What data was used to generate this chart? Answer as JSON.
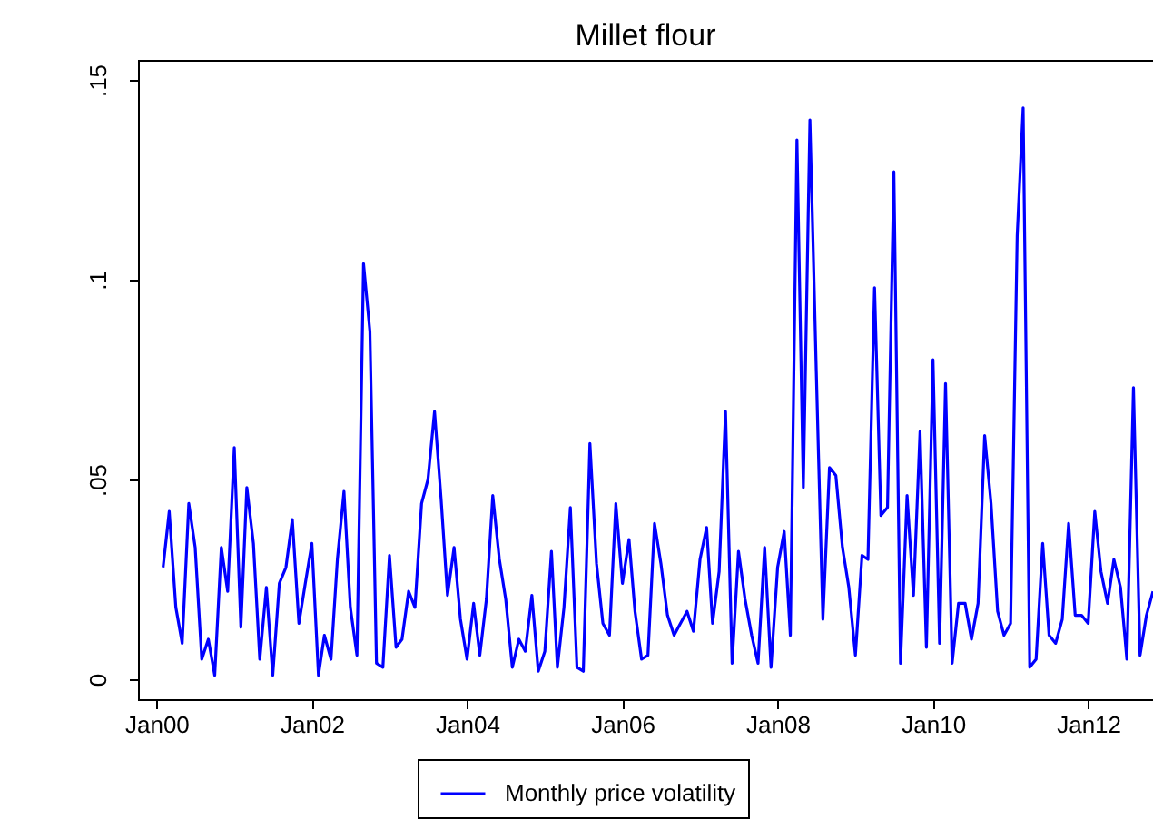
{
  "chart_data": {
    "type": "line",
    "title": "Millet flour",
    "x": [
      "2000-02",
      "2000-03",
      "2000-04",
      "2000-05",
      "2000-06",
      "2000-07",
      "2000-08",
      "2000-09",
      "2000-10",
      "2000-11",
      "2000-12",
      "2001-01",
      "2001-02",
      "2001-03",
      "2001-04",
      "2001-05",
      "2001-06",
      "2001-07",
      "2001-08",
      "2001-09",
      "2001-10",
      "2001-11",
      "2001-12",
      "2002-01",
      "2002-02",
      "2002-03",
      "2002-04",
      "2002-05",
      "2002-06",
      "2002-07",
      "2002-08",
      "2002-09",
      "2002-10",
      "2002-11",
      "2002-12",
      "2003-01",
      "2003-02",
      "2003-03",
      "2003-04",
      "2003-05",
      "2003-06",
      "2003-07",
      "2003-08",
      "2003-09",
      "2003-10",
      "2003-11",
      "2003-12",
      "2004-01",
      "2004-02",
      "2004-03",
      "2004-04",
      "2004-05",
      "2004-06",
      "2004-07",
      "2004-08",
      "2004-09",
      "2004-10",
      "2004-11",
      "2004-12",
      "2005-01",
      "2005-02",
      "2005-03",
      "2005-04",
      "2005-05",
      "2005-06",
      "2005-07",
      "2005-08",
      "2005-09",
      "2005-10",
      "2005-11",
      "2005-12",
      "2006-01",
      "2006-02",
      "2006-03",
      "2006-04",
      "2006-05",
      "2006-06",
      "2006-07",
      "2006-08",
      "2006-09",
      "2006-10",
      "2006-11",
      "2006-12",
      "2007-01",
      "2007-02",
      "2007-03",
      "2007-04",
      "2007-05",
      "2007-06",
      "2007-07",
      "2007-08",
      "2007-09",
      "2007-10",
      "2007-11",
      "2007-12",
      "2008-01",
      "2008-02",
      "2008-03",
      "2008-04",
      "2008-05",
      "2008-06",
      "2008-07",
      "2008-08",
      "2008-09",
      "2008-10",
      "2008-11",
      "2008-12",
      "2009-01",
      "2009-02",
      "2009-03",
      "2009-04",
      "2009-05",
      "2009-06",
      "2009-07",
      "2009-08",
      "2009-09",
      "2009-10",
      "2009-11",
      "2009-12",
      "2010-01",
      "2010-02",
      "2010-03",
      "2010-04",
      "2010-05",
      "2010-06",
      "2010-07",
      "2010-08",
      "2010-09",
      "2010-10",
      "2010-11",
      "2010-12",
      "2011-01",
      "2011-02",
      "2011-03",
      "2011-04",
      "2011-05",
      "2011-06",
      "2011-07",
      "2011-08",
      "2011-09",
      "2011-10",
      "2011-11",
      "2011-12",
      "2012-01",
      "2012-02",
      "2012-03",
      "2012-04",
      "2012-05",
      "2012-06",
      "2012-07",
      "2012-08",
      "2012-09",
      "2012-10",
      "2012-11"
    ],
    "series": [
      {
        "name": "Monthly price volatility",
        "color": "#0000ff",
        "values": [
          0.028,
          0.042,
          0.018,
          0.009,
          0.044,
          0.033,
          0.005,
          0.01,
          0.001,
          0.033,
          0.022,
          0.058,
          0.013,
          0.048,
          0.034,
          0.005,
          0.023,
          0.001,
          0.024,
          0.028,
          0.04,
          0.014,
          0.024,
          0.034,
          0.001,
          0.011,
          0.005,
          0.03,
          0.047,
          0.018,
          0.006,
          0.104,
          0.087,
          0.004,
          0.003,
          0.031,
          0.008,
          0.01,
          0.022,
          0.018,
          0.044,
          0.05,
          0.067,
          0.045,
          0.021,
          0.033,
          0.015,
          0.005,
          0.019,
          0.006,
          0.02,
          0.046,
          0.03,
          0.02,
          0.003,
          0.01,
          0.007,
          0.021,
          0.002,
          0.007,
          0.032,
          0.003,
          0.018,
          0.043,
          0.003,
          0.002,
          0.059,
          0.029,
          0.014,
          0.011,
          0.044,
          0.024,
          0.035,
          0.017,
          0.005,
          0.006,
          0.039,
          0.029,
          0.016,
          0.011,
          0.014,
          0.017,
          0.012,
          0.03,
          0.038,
          0.014,
          0.027,
          0.067,
          0.004,
          0.032,
          0.02,
          0.011,
          0.004,
          0.033,
          0.003,
          0.028,
          0.037,
          0.011,
          0.135,
          0.048,
          0.14,
          0.077,
          0.015,
          0.053,
          0.051,
          0.033,
          0.023,
          0.006,
          0.031,
          0.03,
          0.098,
          0.041,
          0.043,
          0.127,
          0.004,
          0.046,
          0.021,
          0.062,
          0.008,
          0.08,
          0.009,
          0.074,
          0.004,
          0.019,
          0.019,
          0.01,
          0.019,
          0.061,
          0.044,
          0.017,
          0.011,
          0.014,
          0.111,
          0.143,
          0.003,
          0.005,
          0.034,
          0.011,
          0.009,
          0.015,
          0.039,
          0.016,
          0.016,
          0.014,
          0.042,
          0.027,
          0.019,
          0.03,
          0.023,
          0.005,
          0.073,
          0.006,
          0.016,
          0.022
        ]
      }
    ],
    "xlim": [
      "1999-10-06",
      "2012-11-01"
    ],
    "xticks": [
      {
        "value": "2000-01-01",
        "label": "Jan00"
      },
      {
        "value": "2002-01-01",
        "label": "Jan02"
      },
      {
        "value": "2004-01-01",
        "label": "Jan04"
      },
      {
        "value": "2006-01-01",
        "label": "Jan06"
      },
      {
        "value": "2008-01-01",
        "label": "Jan08"
      },
      {
        "value": "2010-01-01",
        "label": "Jan10"
      },
      {
        "value": "2012-01-01",
        "label": "Jan12"
      }
    ],
    "ylim": [
      -0.005,
      0.155
    ],
    "yticks": [
      {
        "value": 0,
        "label": "0"
      },
      {
        "value": 0.05,
        "label": ".05"
      },
      {
        "value": 0.1,
        "label": ".1"
      },
      {
        "value": 0.15,
        "label": ".15"
      }
    ],
    "grid": false,
    "legend": "bottom",
    "marker": "none",
    "line_style": "solid"
  }
}
